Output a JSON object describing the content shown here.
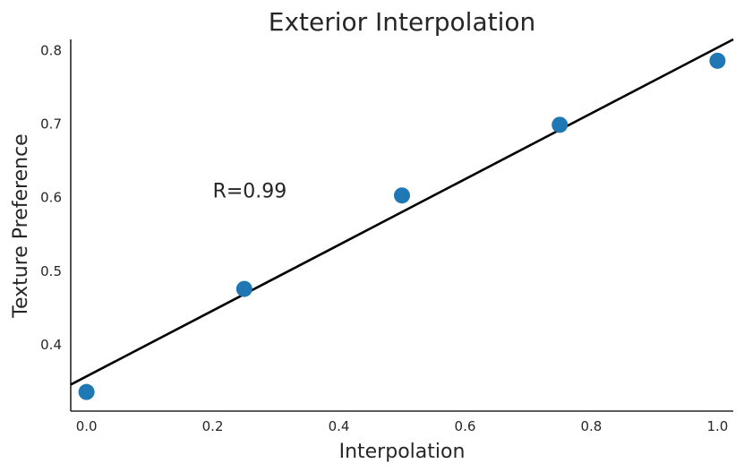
{
  "chart_data": {
    "type": "scatter",
    "title": "Exterior Interpolation",
    "xlabel": "Interpolation",
    "ylabel": "Texture Preference",
    "xlim": [
      -0.025,
      1.025
    ],
    "ylim": [
      0.31,
      0.815
    ],
    "xticks": [
      0.0,
      0.2,
      0.4,
      0.6,
      0.8,
      1.0
    ],
    "xtick_labels": [
      "0.0",
      "0.2",
      "0.4",
      "0.6",
      "0.8",
      "1.0"
    ],
    "yticks": [
      0.4,
      0.5,
      0.6,
      0.7,
      0.8
    ],
    "ytick_labels": [
      "0.4",
      "0.5",
      "0.6",
      "0.7",
      "0.8"
    ],
    "series": [
      {
        "x": [
          0.0,
          0.25,
          0.5,
          0.75,
          1.0
        ],
        "y": [
          0.336,
          0.476,
          0.603,
          0.699,
          0.786
        ],
        "color": "#1f77b4"
      }
    ],
    "fit_line": {
      "x": [
        -0.025,
        1.025
      ],
      "y": [
        0.346,
        0.815
      ],
      "color": "#000000"
    },
    "annotation": {
      "text": "R=0.99",
      "x": 0.2,
      "y": 0.6
    },
    "grid": false,
    "spines": [
      "left",
      "bottom"
    ]
  }
}
